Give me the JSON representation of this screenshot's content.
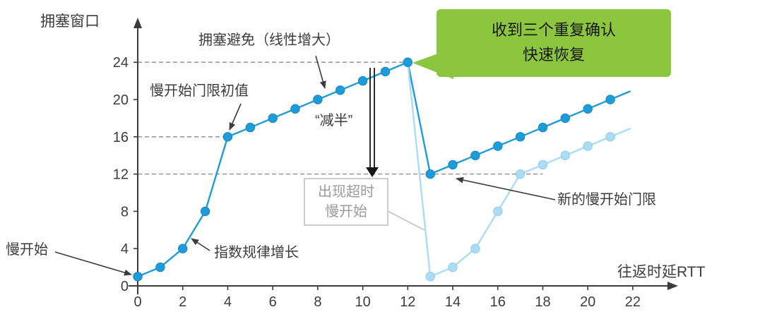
{
  "colors": {
    "main_series": "#1e9cd9",
    "main_series_stroke": "#1486c2",
    "faded_series": "#aadcf5",
    "faded_series_stroke": "#8fccec",
    "axis_text": "#3c3c3c",
    "dashed_line": "#8a8a8a",
    "callout_green": "#8cc63e",
    "timeout_gray": "#9b9b9b"
  },
  "chart_data": {
    "type": "line",
    "xlabel": "往返时延RTT",
    "ylabel": "拥塞窗口",
    "xlim": [
      0,
      22
    ],
    "ylim": [
      0,
      26
    ],
    "grid": false,
    "x_ticks": [
      0,
      2,
      4,
      6,
      8,
      10,
      12,
      14,
      16,
      18,
      20,
      22
    ],
    "y_ticks": [
      0,
      4,
      8,
      12,
      16,
      20,
      24
    ],
    "series": [
      {
        "name": "congestion-window",
        "color": "#1e9cd9",
        "dot_stroke": "#1486c2",
        "points": [
          [
            0,
            1
          ],
          [
            1,
            2
          ],
          [
            2,
            4
          ],
          [
            3,
            8
          ],
          [
            4,
            16
          ],
          [
            5,
            17
          ],
          [
            6,
            18
          ],
          [
            7,
            19
          ],
          [
            8,
            20
          ],
          [
            9,
            21
          ],
          [
            10,
            22
          ],
          [
            11,
            23
          ],
          [
            12,
            24
          ],
          [
            13,
            12
          ],
          [
            14,
            13
          ],
          [
            15,
            14
          ],
          [
            16,
            15
          ],
          [
            17,
            16
          ],
          [
            18,
            17
          ],
          [
            19,
            18
          ],
          [
            20,
            19
          ],
          [
            21,
            20
          ]
        ],
        "extend_to": [
          21.9,
          20.9
        ],
        "skip_first_dot": false
      },
      {
        "name": "timeout-slow-start-alternative",
        "color": "#aadcf5",
        "dot_stroke": "#8fccec",
        "points": [
          [
            12,
            24
          ],
          [
            13,
            1
          ],
          [
            14,
            2
          ],
          [
            15,
            4
          ],
          [
            16,
            8
          ],
          [
            17,
            12
          ],
          [
            18,
            13
          ],
          [
            19,
            14
          ],
          [
            20,
            15
          ],
          [
            21,
            16
          ]
        ],
        "extend_to": [
          21.9,
          16.9
        ],
        "skip_first_dot": true
      }
    ],
    "threshold_lines": [
      {
        "y": 24,
        "x_from": 0,
        "x_to": 12
      },
      {
        "y": 16,
        "x_from": 0,
        "x_to": 4
      },
      {
        "y": 12,
        "x_from": 0,
        "x_to": 18
      }
    ]
  },
  "labels": {
    "y_axis_title": "拥塞窗口",
    "x_axis_title": "往返时延RTT",
    "slow_start": "慢开始",
    "exponential_growth": "指数规律增长",
    "initial_threshold": "慢开始门限初值",
    "congestion_avoidance": "拥塞避免（线性增大）",
    "halve": "“减半”",
    "fast_recovery_line1": "收到三个重复确认",
    "fast_recovery_line2": "快速恢复",
    "timeout_line1": "出现超时",
    "timeout_line2": "慢开始",
    "new_threshold": "新的慢开始门限"
  }
}
